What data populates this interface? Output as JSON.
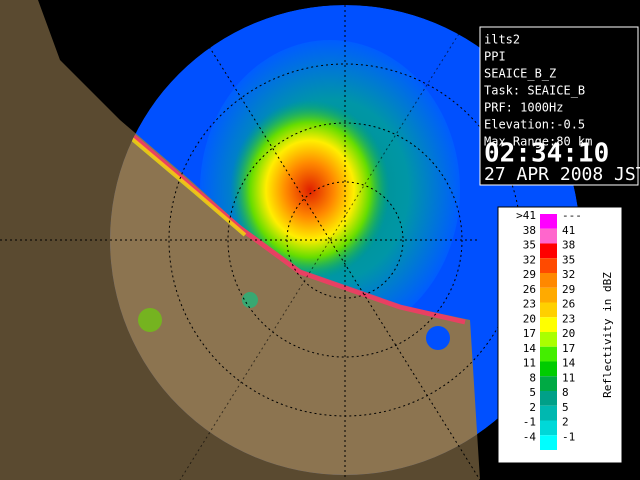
{
  "info_panel": {
    "lines": [
      "ilts2",
      "PPI",
      "SEAICE_B_Z",
      "Task: SEAICE_B",
      "PRF: 1000Hz",
      "Elevation:-0.5",
      "Max Range:80 km"
    ],
    "time": "02:34:10",
    "date": "27 APR 2008 JST"
  },
  "legend": {
    "title": "Reflectivity in dBZ",
    "rows": [
      {
        "low": ">41",
        "high": "---",
        "color": "#ff00ff"
      },
      {
        "low": "38",
        "high": "41",
        "color": "#ff66cc"
      },
      {
        "low": "35",
        "high": "38",
        "color": "#ff0000"
      },
      {
        "low": "32",
        "high": "35",
        "color": "#ff4a00"
      },
      {
        "low": "29",
        "high": "32",
        "color": "#ff8800"
      },
      {
        "low": "26",
        "high": "29",
        "color": "#ffaa00"
      },
      {
        "low": "23",
        "high": "26",
        "color": "#ffd000"
      },
      {
        "low": "20",
        "high": "23",
        "color": "#ffff00"
      },
      {
        "low": "17",
        "high": "20",
        "color": "#aaff00"
      },
      {
        "low": "14",
        "high": "17",
        "color": "#44ee00"
      },
      {
        "low": "11",
        "high": "14",
        "color": "#00cc00"
      },
      {
        "low": "8",
        "high": "11",
        "color": "#00aa44"
      },
      {
        "low": "5",
        "high": "8",
        "color": "#00a088"
      },
      {
        "low": "2",
        "high": "5",
        "color": "#00b8b0"
      },
      {
        "low": "-1",
        "high": "2",
        "color": "#00d8d8"
      },
      {
        "low": "-4",
        "high": "-1",
        "color": "#00ffff"
      }
    ]
  }
}
